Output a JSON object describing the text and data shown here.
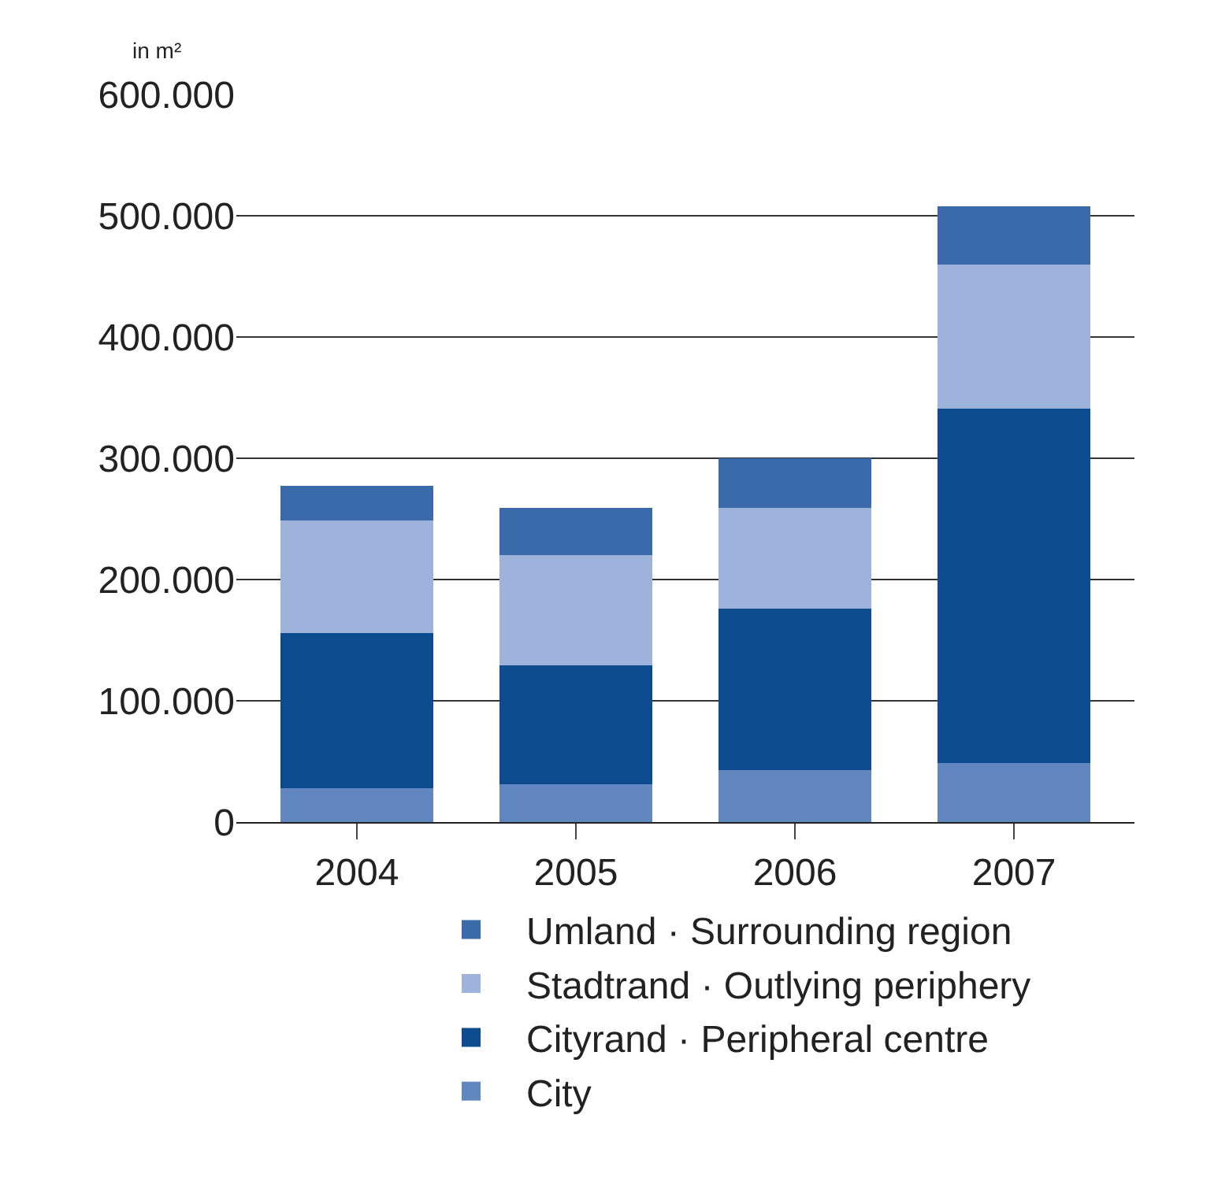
{
  "chart_data": {
    "type": "bar",
    "stacked": true,
    "ylabel": "in m²",
    "categories": [
      "2004",
      "2005",
      "2006",
      "2007"
    ],
    "series": [
      {
        "name": "City",
        "color": "#6186c0",
        "values": [
          28000,
          31000,
          43000,
          49000
        ]
      },
      {
        "name": "Cityrand · Peripheral centre",
        "color": "#0d4b8f",
        "values": [
          128000,
          98000,
          133000,
          292000
        ]
      },
      {
        "name": "Stadtrand · Outlying periphery",
        "color": "#9db3db",
        "values": [
          93000,
          91000,
          83000,
          119000
        ]
      },
      {
        "name": "Umland · Surrounding region",
        "color": "#3a6aaa",
        "values": [
          28000,
          39000,
          41000,
          48000
        ]
      }
    ],
    "ylim": [
      0,
      600000
    ],
    "yticks": [
      {
        "value": 0,
        "label": "0"
      },
      {
        "value": 100000,
        "label": "100.000"
      },
      {
        "value": 200000,
        "label": "200.000"
      },
      {
        "value": 300000,
        "label": "300.000"
      },
      {
        "value": 400000,
        "label": "400.000"
      },
      {
        "value": 500000,
        "label": "500.000"
      },
      {
        "value": 600000,
        "label": "600.000"
      }
    ],
    "grid": "y",
    "legend": "bottom"
  }
}
